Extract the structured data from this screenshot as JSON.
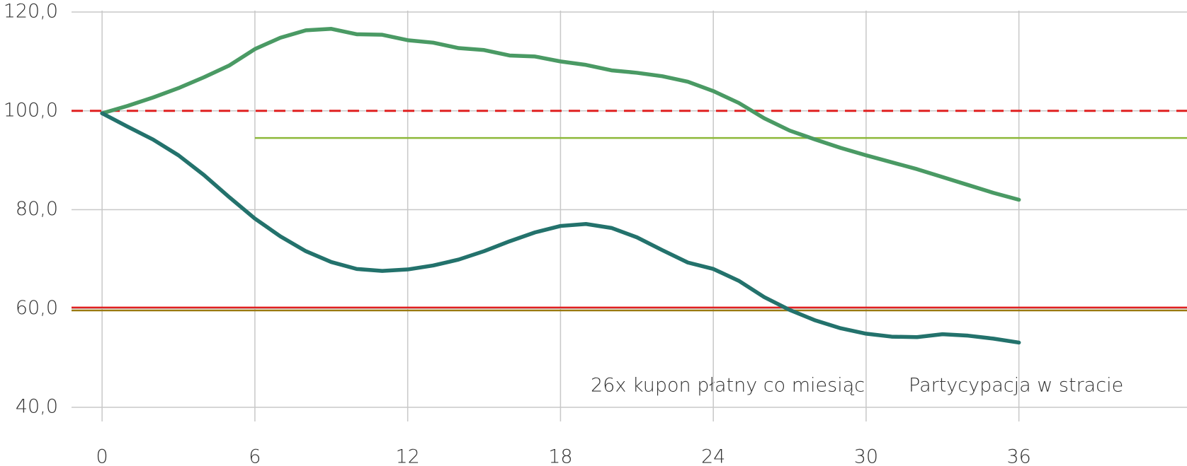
{
  "chart_data": {
    "type": "line",
    "x": [
      0,
      1,
      2,
      3,
      4,
      5,
      6,
      7,
      8,
      9,
      10,
      11,
      12,
      13,
      14,
      15,
      16,
      17,
      18,
      19,
      20,
      21,
      22,
      23,
      24,
      25,
      26,
      27,
      28,
      29,
      30,
      31,
      32,
      33,
      34,
      35,
      36
    ],
    "series": [
      {
        "color": "#4a9a64",
        "values": [
          99.5,
          101,
          102.7,
          104.6,
          106.8,
          109.2,
          112.5,
          114.8,
          116.3,
          116.6,
          115.5,
          115.4,
          114.3,
          113.8,
          112.7,
          112.3,
          111.2,
          111,
          110,
          109.3,
          108.2,
          107.7,
          107,
          105.9,
          104,
          101.6,
          98.5,
          96,
          94.2,
          92.5,
          91,
          89.6,
          88.2,
          86.6,
          85,
          83.4,
          82
        ]
      },
      {
        "color": "#23726c",
        "values": [
          99.5,
          96.8,
          94.2,
          91,
          87,
          82.5,
          78.2,
          74.6,
          71.6,
          69.4,
          68,
          67.6,
          67.9,
          68.7,
          69.9,
          71.6,
          73.6,
          75.4,
          76.7,
          77.1,
          76.3,
          74.4,
          71.8,
          69.3,
          68,
          65.6,
          62.3,
          59.7,
          57.6,
          56,
          54.9,
          54.3,
          54.2,
          54.8,
          54.5,
          53.9,
          53.1
        ]
      }
    ],
    "reference_lines": [
      {
        "value": 100,
        "color": "#e02020",
        "dashed": true
      },
      {
        "value": 94.5,
        "color": "#8db83a",
        "x_start": 6
      },
      {
        "value": 60.2,
        "color": "#e02020"
      },
      {
        "value": 59.6,
        "color": "#9a7a10"
      }
    ],
    "annotations": [
      "26x kupon płatny co miesiąc",
      "Partycypacja w stracie"
    ],
    "xlim": [
      -1.2,
      42.6
    ],
    "ylim": [
      40,
      120
    ],
    "xticks": [
      0,
      6,
      12,
      18,
      24,
      30,
      36
    ],
    "yticks": [
      {
        "value": 40,
        "label": "40,0"
      },
      {
        "value": 60,
        "label": "60,0"
      },
      {
        "value": 80,
        "label": "80,0"
      },
      {
        "value": 100,
        "label": "100,0"
      },
      {
        "value": 120,
        "label": "120,0"
      }
    ],
    "grid": true
  }
}
